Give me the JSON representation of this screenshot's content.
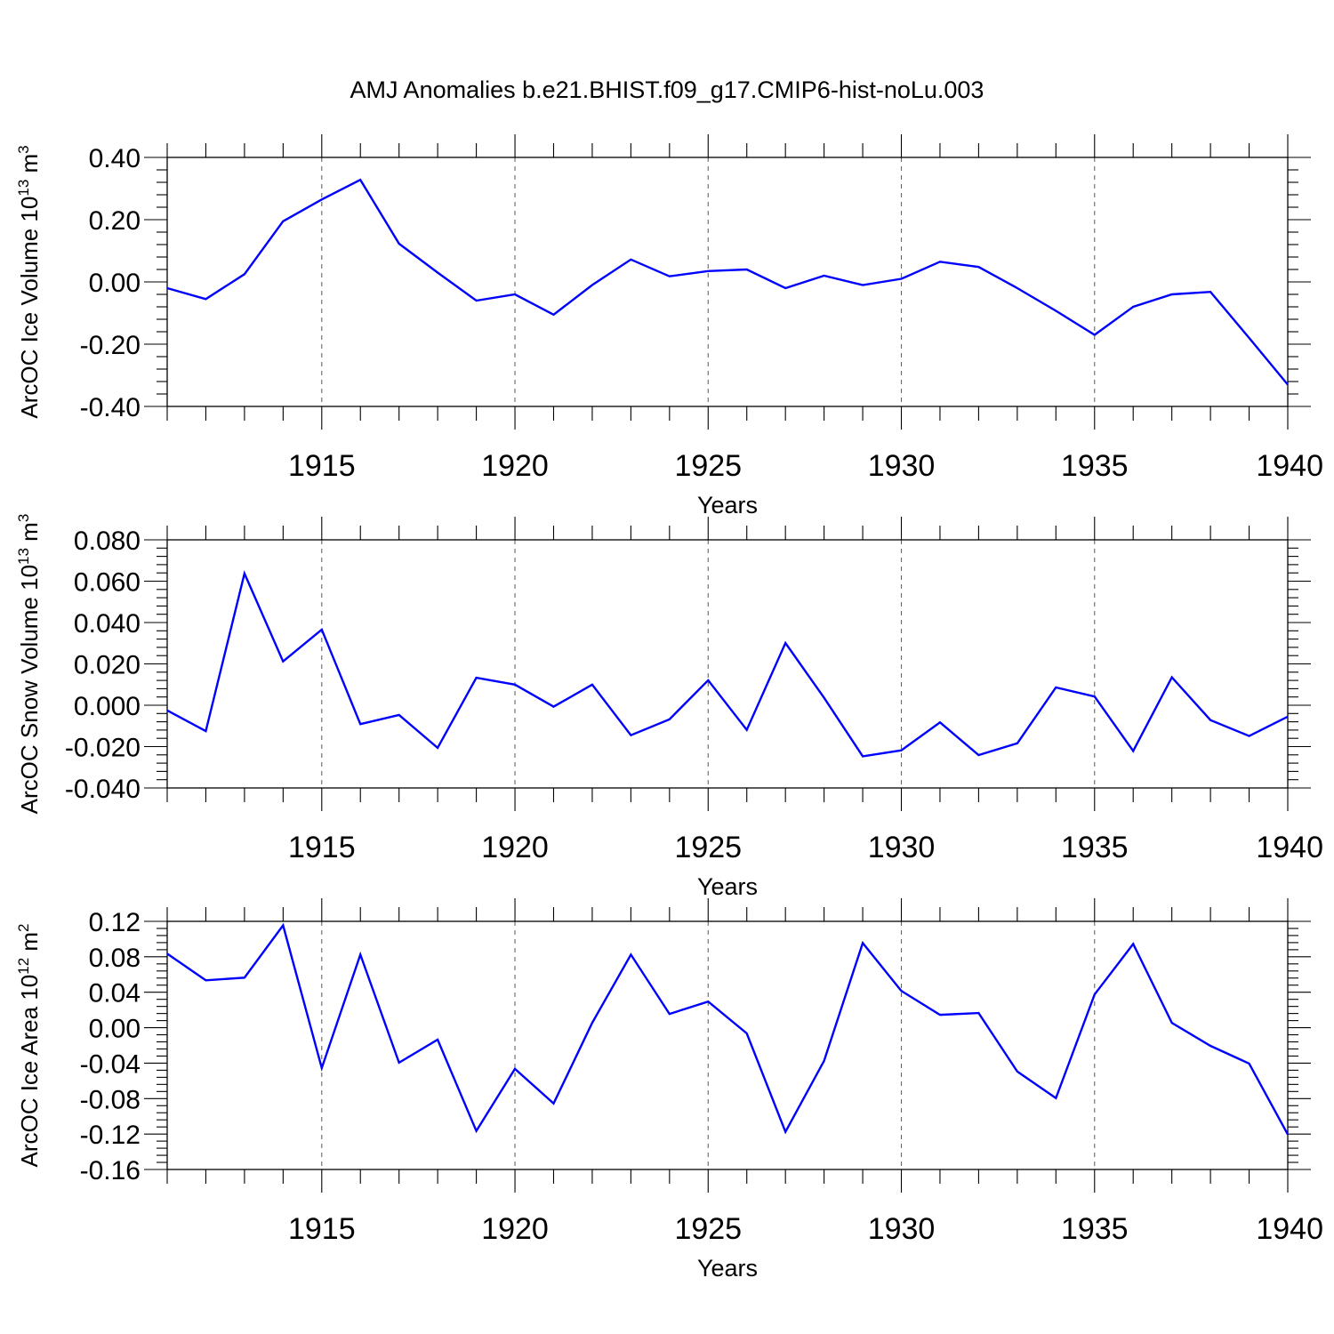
{
  "title": "AMJ Anomalies b.e21.BHIST.f09_g17.CMIP6-hist-noLu.003",
  "chart_data": [
    {
      "type": "line",
      "ylabel_main": "ArcOC Ice Volume 10",
      "ylabel_exp": "13",
      "ylabel_unit": " m",
      "ylabel_unit_exp": "3",
      "xlabel": "Years",
      "xlim": [
        1911,
        1940
      ],
      "ylim": [
        -0.4,
        0.4
      ],
      "yticks": [
        -0.4,
        -0.2,
        0.0,
        0.2,
        0.4
      ],
      "ytick_labels": [
        "-0.40",
        "-0.20",
        "0.00",
        "0.20",
        "0.40"
      ],
      "xticks": [
        1915,
        1920,
        1925,
        1930,
        1935,
        1940
      ],
      "xtick_labels": [
        "1915",
        "1920",
        "1925",
        "1930",
        "1935",
        "1940"
      ],
      "x": [
        1911,
        1912,
        1913,
        1914,
        1915,
        1916,
        1917,
        1918,
        1919,
        1920,
        1921,
        1922,
        1923,
        1924,
        1925,
        1926,
        1927,
        1928,
        1929,
        1930,
        1931,
        1932,
        1933,
        1934,
        1935,
        1936,
        1937,
        1938,
        1939,
        1940
      ],
      "series": [
        {
          "name": "ArcOC Ice Volume",
          "color": "#0000ff",
          "values": [
            -0.02,
            -0.055,
            0.025,
            0.195,
            0.265,
            0.328,
            0.123,
            0.03,
            -0.06,
            -0.04,
            -0.105,
            -0.01,
            0.072,
            0.018,
            0.035,
            0.04,
            -0.02,
            0.02,
            -0.01,
            0.01,
            0.065,
            0.048,
            -0.02,
            -0.093,
            -0.17,
            -0.08,
            -0.04,
            -0.032,
            -0.18,
            -0.33
          ]
        }
      ]
    },
    {
      "type": "line",
      "ylabel_main": "ArcOC Snow Volume 10",
      "ylabel_exp": "13",
      "ylabel_unit": " m",
      "ylabel_unit_exp": "3",
      "xlabel": "Years",
      "xlim": [
        1911,
        1940
      ],
      "ylim": [
        -0.04,
        0.08
      ],
      "yticks": [
        -0.04,
        -0.02,
        0.0,
        0.02,
        0.04,
        0.06,
        0.08
      ],
      "ytick_labels": [
        "-0.040",
        "-0.020",
        "0.000",
        "0.020",
        "0.040",
        "0.060",
        "0.080"
      ],
      "xticks": [
        1915,
        1920,
        1925,
        1930,
        1935,
        1940
      ],
      "xtick_labels": [
        "1915",
        "1920",
        "1925",
        "1930",
        "1935",
        "1940"
      ],
      "x": [
        1911,
        1912,
        1913,
        1914,
        1915,
        1916,
        1917,
        1918,
        1919,
        1920,
        1921,
        1922,
        1923,
        1924,
        1925,
        1926,
        1927,
        1928,
        1929,
        1930,
        1931,
        1932,
        1933,
        1934,
        1935,
        1936,
        1937,
        1938,
        1939,
        1940
      ],
      "series": [
        {
          "name": "ArcOC Snow Volume",
          "color": "#0000ff",
          "values": [
            -0.0025,
            -0.0125,
            0.0637,
            0.0212,
            0.0366,
            -0.0091,
            -0.0047,
            -0.0206,
            0.0133,
            0.01,
            -0.0007,
            0.01,
            -0.0145,
            -0.0068,
            0.0121,
            -0.0119,
            0.0301,
            0.0036,
            -0.0247,
            -0.0218,
            -0.0083,
            -0.0241,
            -0.0184,
            0.0086,
            0.0042,
            -0.0221,
            0.0135,
            -0.0072,
            -0.0149,
            -0.0055
          ]
        }
      ]
    },
    {
      "type": "line",
      "ylabel_main": "ArcOC Ice Area 10",
      "ylabel_exp": "12",
      "ylabel_unit": " m",
      "ylabel_unit_exp": "2",
      "xlabel": "Years",
      "xlim": [
        1911,
        1940
      ],
      "ylim": [
        -0.16,
        0.12
      ],
      "yticks": [
        -0.16,
        -0.12,
        -0.08,
        -0.04,
        0.0,
        0.04,
        0.08,
        0.12
      ],
      "ytick_labels": [
        "-0.16",
        "-0.12",
        "-0.08",
        "-0.04",
        "0.00",
        "0.04",
        "0.08",
        "0.12"
      ],
      "xticks": [
        1915,
        1920,
        1925,
        1930,
        1935,
        1940
      ],
      "xtick_labels": [
        "1915",
        "1920",
        "1925",
        "1930",
        "1935",
        "1940"
      ],
      "x": [
        1911,
        1912,
        1913,
        1914,
        1915,
        1916,
        1917,
        1918,
        1919,
        1920,
        1921,
        1922,
        1923,
        1924,
        1925,
        1926,
        1927,
        1928,
        1929,
        1930,
        1931,
        1932,
        1933,
        1934,
        1935,
        1936,
        1937,
        1938,
        1939,
        1940
      ],
      "series": [
        {
          "name": "ArcOC Ice Area",
          "color": "#0000ff",
          "values": [
            0.0835,
            0.0535,
            0.0565,
            0.1155,
            -0.0455,
            0.0825,
            -0.0395,
            -0.0135,
            -0.1165,
            -0.0465,
            -0.0855,
            0.0055,
            0.0825,
            0.0155,
            0.0295,
            -0.0065,
            -0.1175,
            -0.0375,
            0.0955,
            0.0415,
            0.0145,
            0.0165,
            -0.0495,
            -0.0795,
            0.0375,
            0.0945,
            0.0055,
            -0.0205,
            -0.0405,
            -0.1205
          ]
        }
      ]
    }
  ]
}
